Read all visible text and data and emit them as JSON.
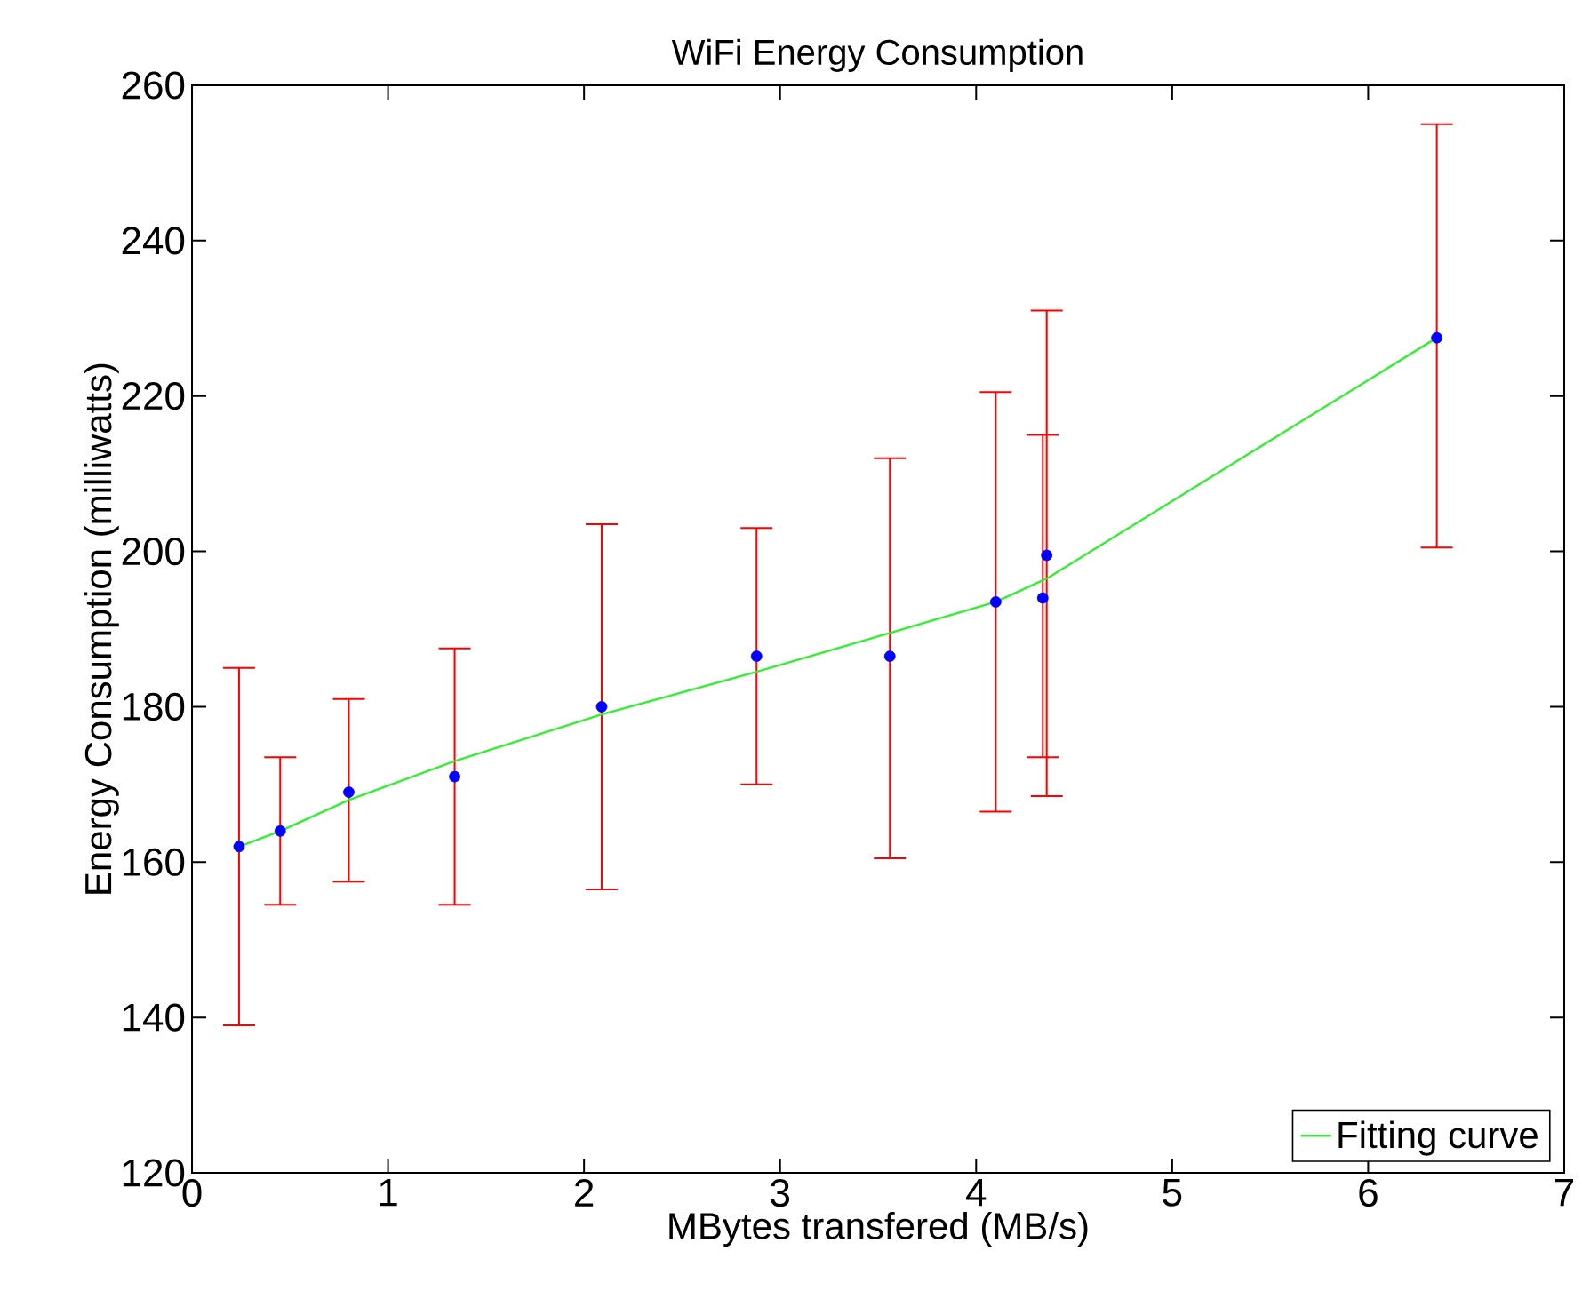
{
  "chart_data": {
    "type": "scatter",
    "title": "WiFi Energy Consumption",
    "xlabel": "MBytes transfered (MB/s)",
    "ylabel": "Energy Consumption (milliwatts)",
    "xlim": [
      0,
      7
    ],
    "xticks": [
      0,
      1,
      2,
      3,
      4,
      5,
      6,
      7
    ],
    "ylim": [
      120,
      260
    ],
    "yticks": [
      120,
      140,
      160,
      180,
      200,
      220,
      240,
      260
    ],
    "grid": false,
    "legend": "bottom right",
    "series": [
      {
        "marker": "circle",
        "color": "#0000ff",
        "x": [
          0.24,
          0.45,
          0.8,
          1.34,
          2.09,
          2.88,
          3.56,
          4.1,
          4.34,
          4.36,
          6.35
        ],
        "values": [
          162,
          164,
          169,
          171,
          180,
          186.5,
          186.5,
          193.5,
          194,
          199.5,
          227.5
        ],
        "errors": [
          [
            139,
            185
          ],
          [
            154.5,
            173.5
          ],
          [
            157.5,
            181
          ],
          [
            154.5,
            187.5
          ],
          [
            156.5,
            203.5
          ],
          [
            170,
            203
          ],
          [
            160.5,
            212
          ],
          [
            166.5,
            220.5
          ],
          [
            173.5,
            215
          ],
          [
            168.5,
            231
          ],
          [
            200.5,
            255
          ]
        ]
      },
      {
        "type": "line",
        "name": "Fitting curve",
        "marker": "none",
        "line_style": "solid",
        "color": "#33ee33",
        "x": [
          0.24,
          0.45,
          0.8,
          1.34,
          2.09,
          2.88,
          3.56,
          4.1,
          4.36,
          6.35
        ],
        "values": [
          162,
          164,
          168,
          173,
          179,
          184.5,
          189.5,
          193.5,
          196.5,
          227.5
        ]
      }
    ]
  }
}
